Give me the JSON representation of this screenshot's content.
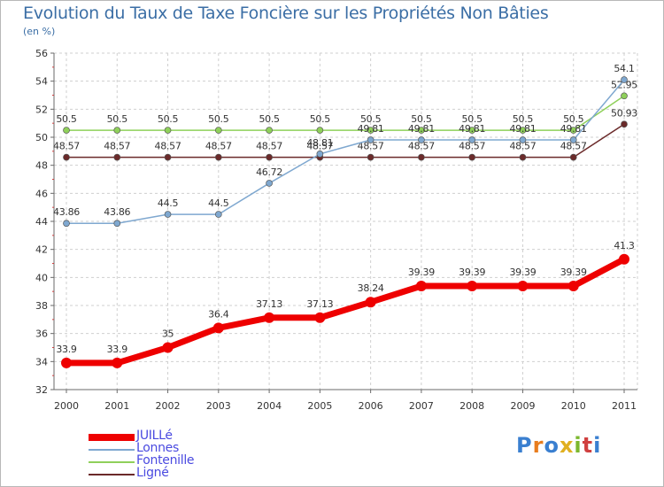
{
  "header": {
    "title": "Evolution du Taux de Taxe Foncière sur les Propriétés Non Bâties",
    "unit": "(en %)"
  },
  "logo": {
    "letters": [
      "P",
      "r",
      "o",
      "x",
      "i",
      "t",
      "i"
    ],
    "colors": [
      "#3a7fd0",
      "#e87d1e",
      "#3a7fd0",
      "#e0b020",
      "#7cb82f",
      "#d04040",
      "#3a7fd0"
    ]
  },
  "chart_data": {
    "type": "line",
    "title": "Evolution du Taux de Taxe Foncière sur les Propriétés Non Bâties",
    "ylabel": "(en %)",
    "xlabel": "",
    "x": [
      "2000",
      "2001",
      "2002",
      "2003",
      "2004",
      "2005",
      "2006",
      "2007",
      "2008",
      "2009",
      "2010",
      "2011"
    ],
    "ylim": [
      32,
      56
    ],
    "yticks": [
      32,
      34,
      36,
      38,
      40,
      42,
      44,
      46,
      48,
      50,
      52,
      54,
      56
    ],
    "grid": true,
    "legend_position": "bottom-left",
    "series": [
      {
        "name": "Ligné",
        "color": "#6b2a2a",
        "width": "thin",
        "values": [
          48.57,
          48.57,
          48.57,
          48.57,
          48.57,
          48.57,
          48.57,
          48.57,
          48.57,
          48.57,
          48.57,
          50.93
        ],
        "labels": [
          "48.57",
          "48.57",
          "48.57",
          "48.57",
          "48.57",
          "48.57",
          "48.57",
          "48.57",
          "48.57",
          "48.57",
          "48.57",
          "50.93"
        ]
      },
      {
        "name": "Fontenille",
        "color": "#8fd05a",
        "width": "thin",
        "values": [
          50.5,
          50.5,
          50.5,
          50.5,
          50.5,
          50.5,
          50.5,
          50.5,
          50.5,
          50.5,
          50.5,
          52.95
        ],
        "labels": [
          "50.5",
          "50.5",
          "50.5",
          "50.5",
          "50.5",
          "50.5",
          "50.5",
          "50.5",
          "50.5",
          "50.5",
          "50.5",
          "52.95"
        ]
      },
      {
        "name": "Lonnes",
        "color": "#7fa8d0",
        "width": "thin",
        "values": [
          43.86,
          43.86,
          44.5,
          44.5,
          46.72,
          48.81,
          49.81,
          49.81,
          49.81,
          49.81,
          49.81,
          54.1
        ],
        "labels": [
          "43.86",
          "43.86",
          "44.5",
          "44.5",
          "46.72",
          "48.81",
          "49.81",
          "49.81",
          "49.81",
          "49.81",
          "49.81",
          "54.1"
        ]
      },
      {
        "name": "JUILLé",
        "color": "#ee0000",
        "width": "thick",
        "values": [
          33.9,
          33.9,
          35,
          36.4,
          37.13,
          37.13,
          38.24,
          39.39,
          39.39,
          39.39,
          39.39,
          41.3
        ],
        "labels": [
          "33.9",
          "33.9",
          "35",
          "36.4",
          "37.13",
          "37.13",
          "38.24",
          "39.39",
          "39.39",
          "39.39",
          "39.39",
          "41.3"
        ]
      }
    ],
    "legend": [
      {
        "name": "JUILLé",
        "color": "#ee0000",
        "label_color": "#4a4ae0"
      },
      {
        "name": "Lonnes",
        "color": "#7fa8d0",
        "label_color": "#4a4ae0"
      },
      {
        "name": "Fontenille",
        "color": "#8fd05a",
        "label_color": "#4a4ae0"
      },
      {
        "name": "Ligné",
        "color": "#6b2a2a",
        "label_color": "#4a4ae0"
      }
    ]
  }
}
